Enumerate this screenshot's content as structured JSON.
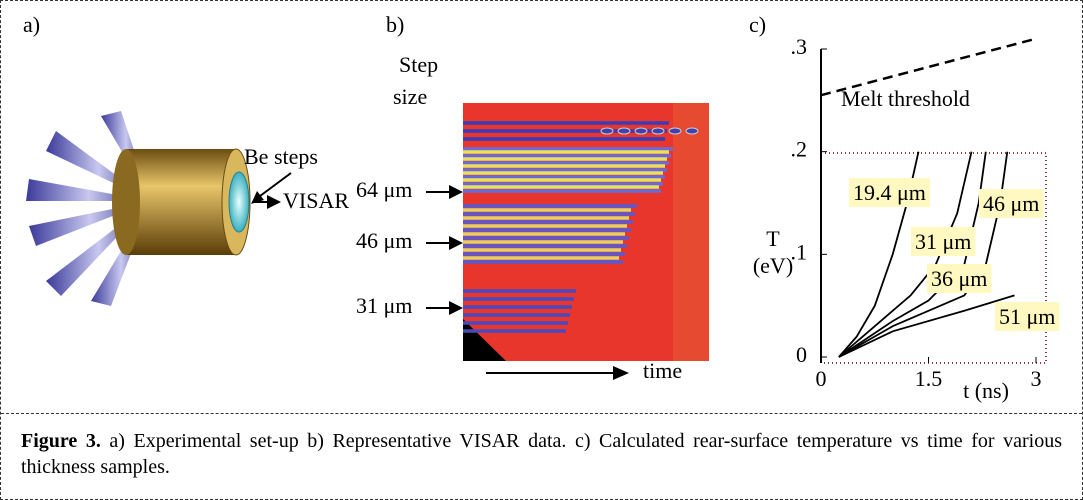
{
  "panel_a": {
    "label": "a)",
    "be_steps": "Be steps",
    "visar": "VISAR"
  },
  "panel_b": {
    "label": "b)",
    "step_size": [
      "Step",
      "size"
    ],
    "steps": [
      "64 μm",
      "46 μm",
      "31 μm"
    ],
    "time": "time"
  },
  "chart_data": {
    "type": "line",
    "label": "c)",
    "xlabel": "t (ns)",
    "ylabel": [
      "T",
      "(eV)"
    ],
    "xlim": [
      0,
      3
    ],
    "ylim": [
      0,
      0.3
    ],
    "xticks": [
      0,
      1.5,
      3
    ],
    "yticks": [
      0,
      {
        "value": 0.1,
        "label": ".1"
      },
      {
        "value": 0.2,
        "label": ".2"
      },
      {
        "value": 0.3,
        "label": ".3"
      }
    ],
    "melt_threshold": {
      "label": "Melt threshold",
      "x": [
        0,
        3
      ],
      "values": [
        0.255,
        0.31
      ]
    },
    "series": [
      {
        "name": "19.4 μm",
        "color": "#000000",
        "x": [
          0.25,
          0.5,
          0.75,
          1.0,
          1.2,
          1.36
        ],
        "values": [
          0,
          0.02,
          0.05,
          0.1,
          0.15,
          0.2
        ]
      },
      {
        "name": "31 μm",
        "color": "#000000",
        "x": [
          0.25,
          0.75,
          1.25,
          1.6,
          1.9,
          2.1
        ],
        "values": [
          0,
          0.03,
          0.06,
          0.09,
          0.14,
          0.2
        ]
      },
      {
        "name": "36 μm",
        "color": "#000000",
        "x": [
          0.25,
          1.0,
          1.5,
          2.0,
          2.2,
          2.3
        ],
        "values": [
          0,
          0.035,
          0.055,
          0.09,
          0.15,
          0.2
        ]
      },
      {
        "name": "46 μm",
        "color": "#000000",
        "x": [
          0.25,
          1.0,
          2.0,
          2.3,
          2.5,
          2.6
        ],
        "values": [
          0,
          0.03,
          0.06,
          0.09,
          0.15,
          0.2
        ]
      },
      {
        "name": "51 μm",
        "color": "#000000",
        "x": [
          0.25,
          1.0,
          2.0,
          2.7
        ],
        "values": [
          0,
          0.025,
          0.045,
          0.06
        ]
      }
    ]
  },
  "caption": {
    "label": "Figure 3.",
    "text": "a) Experimental set-up b) Representative VISAR data. c) Calculated rear-surface temperature vs time for various thickness samples."
  }
}
